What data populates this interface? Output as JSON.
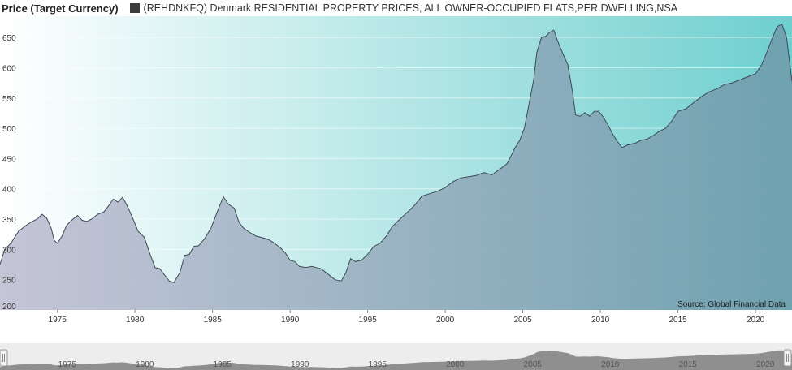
{
  "header": {
    "y_axis_title": "Price (Target Currency)",
    "legend_label": "(REHDNKFQ) Denmark RESIDENTIAL PROPERTY PRICES, ALL OWNER-OCCUPIED FLATS,PER DWELLING,NSA"
  },
  "source_note": "Source: Global Financial Data",
  "colors": {
    "series_line": "#3c4a55",
    "legend_swatch": "#3c3c3c",
    "fill_left": "#c2c2d4",
    "fill_right": "#6f9fae",
    "bg_left": "#ffffff",
    "bg_right": "#6fcfcf"
  },
  "chart_data": {
    "type": "area",
    "title": "",
    "xlabel": "",
    "ylabel": "Price (Target Currency)",
    "xlim": [
      1971.3,
      2022.35
    ],
    "ylim": [
      200,
      685
    ],
    "x_ticks": [
      1975,
      1980,
      1985,
      1990,
      1995,
      2000,
      2005,
      2010,
      2015,
      2020
    ],
    "y_ticks": [
      250,
      300,
      350,
      400,
      450,
      500,
      550,
      600,
      650
    ],
    "y_tick_labels_shown": [
      "200",
      "250",
      "300",
      "350",
      "400",
      "450",
      "500",
      "550",
      "600",
      "650"
    ],
    "grid": true,
    "legend_position": "top-left",
    "series": [
      {
        "name": "(REHDNKFQ) Denmark RESIDENTIAL PROPERTY PRICES, ALL OWNER-OCCUPIED FLATS,PER DWELLING,NSA",
        "x": [
          1971.3,
          1971.6,
          1972.0,
          1972.5,
          1973.0,
          1973.3,
          1973.7,
          1974.0,
          1974.3,
          1974.6,
          1974.8,
          1975.0,
          1975.3,
          1975.6,
          1976.0,
          1976.3,
          1976.6,
          1976.9,
          1977.2,
          1977.6,
          1978.0,
          1978.3,
          1978.6,
          1978.9,
          1979.2,
          1979.5,
          1979.8,
          1980.2,
          1980.6,
          1981.0,
          1981.3,
          1981.6,
          1981.9,
          1982.2,
          1982.5,
          1982.9,
          1983.2,
          1983.5,
          1983.8,
          1984.1,
          1984.5,
          1984.9,
          1985.3,
          1985.7,
          1986.0,
          1986.4,
          1986.7,
          1987.0,
          1987.4,
          1987.8,
          1988.1,
          1988.4,
          1988.7,
          1989.0,
          1989.4,
          1989.7,
          1990.0,
          1990.3,
          1990.6,
          1991.0,
          1991.4,
          1991.7,
          1992.0,
          1992.3,
          1992.6,
          1992.9,
          1993.3,
          1993.6,
          1993.9,
          1994.2,
          1994.6,
          1995.0,
          1995.4,
          1995.8,
          1996.2,
          1996.6,
          1997.0,
          1997.5,
          1998.0,
          1998.5,
          1999.0,
          1999.5,
          2000.0,
          2000.5,
          2001.0,
          2001.5,
          2002.0,
          2002.5,
          2003.0,
          2003.5,
          2004.0,
          2004.5,
          2004.8,
          2005.1,
          2005.4,
          2005.7,
          2005.9,
          2006.2,
          2006.5,
          2006.7,
          2007.0,
          2007.3,
          2007.6,
          2007.9,
          2008.2,
          2008.4,
          2008.7,
          2009.0,
          2009.3,
          2009.6,
          2009.9,
          2010.2,
          2010.5,
          2010.8,
          2011.1,
          2011.4,
          2011.7,
          2012.0,
          2012.3,
          2012.6,
          2013.0,
          2013.4,
          2013.8,
          2014.2,
          2014.6,
          2015.0,
          2015.5,
          2016.0,
          2016.5,
          2017.0,
          2017.5,
          2018.0,
          2018.5,
          2019.0,
          2019.5,
          2020.0,
          2020.4,
          2020.8,
          2021.1,
          2021.4,
          2021.7,
          2022.0,
          2022.35
        ],
        "values": [
          275,
          300,
          310,
          330,
          340,
          345,
          350,
          358,
          352,
          335,
          315,
          310,
          322,
          340,
          350,
          356,
          348,
          346,
          350,
          358,
          362,
          372,
          383,
          378,
          386,
          372,
          355,
          330,
          320,
          290,
          270,
          268,
          258,
          248,
          245,
          262,
          290,
          292,
          305,
          306,
          318,
          335,
          362,
          387,
          375,
          368,
          345,
          335,
          328,
          322,
          320,
          318,
          315,
          310,
          302,
          294,
          282,
          280,
          272,
          270,
          272,
          270,
          268,
          262,
          256,
          250,
          248,
          262,
          285,
          280,
          282,
          292,
          305,
          310,
          322,
          338,
          348,
          360,
          372,
          388,
          392,
          396,
          402,
          412,
          418,
          420,
          422,
          427,
          423,
          432,
          442,
          468,
          480,
          500,
          540,
          580,
          625,
          650,
          652,
          658,
          662,
          640,
          622,
          605,
          560,
          522,
          520,
          526,
          520,
          528,
          528,
          518,
          505,
          490,
          478,
          468,
          472,
          474,
          476,
          480,
          482,
          488,
          495,
          500,
          512,
          528,
          532,
          542,
          552,
          560,
          565,
          572,
          575,
          580,
          585,
          590,
          605,
          630,
          650,
          668,
          672,
          650,
          578
        ]
      }
    ]
  }
}
